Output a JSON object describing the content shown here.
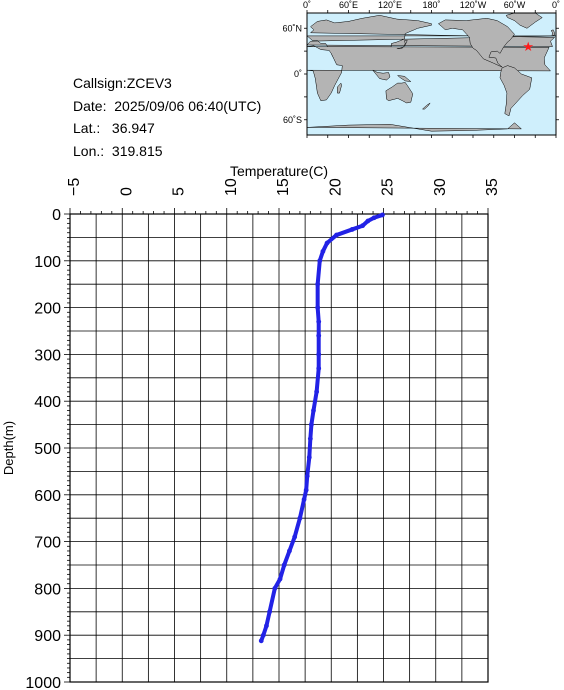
{
  "info": {
    "callsign": "Callsign:ZCEV3",
    "date": "Date:  2025/09/06 06:40(UTC)",
    "lat": "Lat.:   36.947",
    "lon": "Lon.:  319.815"
  },
  "map": {
    "lon_labels": [
      "0˚",
      "60˚E",
      "120˚E",
      "180˚",
      "120˚W",
      "60˚W",
      "0˚"
    ],
    "lat_labels": [
      "60˚N",
      "0˚",
      "60˚S"
    ],
    "ocean_color": "#cfeffc",
    "land_color": "#b4b4b4",
    "marker": {
      "lon": 319.815,
      "lat": 36.947,
      "symbol": "★",
      "color": "#ff1a1a"
    }
  },
  "chart_data": {
    "type": "line",
    "title": "",
    "xlabel": "Temperature(C)",
    "ylabel": "Depth(m)",
    "xlim": [
      -5,
      35
    ],
    "ylim": [
      1000,
      0
    ],
    "xticks": [
      "−5",
      "0",
      "5",
      "10",
      "15",
      "20",
      "25",
      "30",
      "35"
    ],
    "yticks": [
      "0",
      "100",
      "200",
      "300",
      "400",
      "500",
      "600",
      "700",
      "800",
      "900",
      "1000"
    ],
    "x_axis_position": "top",
    "grid": true,
    "series": [
      {
        "color": "#2222e6",
        "x": [
          24.9,
          24.1,
          23.5,
          23.0,
          22.0,
          20.5,
          19.6,
          19.2,
          18.9,
          18.7,
          18.7,
          18.8,
          18.8,
          18.8,
          18.8,
          18.6,
          18.3,
          18.1,
          18.0,
          17.9,
          17.7,
          17.6,
          17.4,
          17.0,
          16.5,
          16.0,
          15.5,
          15.1,
          14.6,
          14.1,
          13.8,
          13.5,
          13.3
        ],
        "y": [
          2,
          8,
          15,
          25,
          33,
          45,
          62,
          80,
          100,
          150,
          200,
          230,
          260,
          300,
          330,
          380,
          420,
          450,
          480,
          520,
          560,
          590,
          610,
          650,
          690,
          720,
          750,
          780,
          800,
          850,
          880,
          900,
          912
        ]
      }
    ]
  }
}
